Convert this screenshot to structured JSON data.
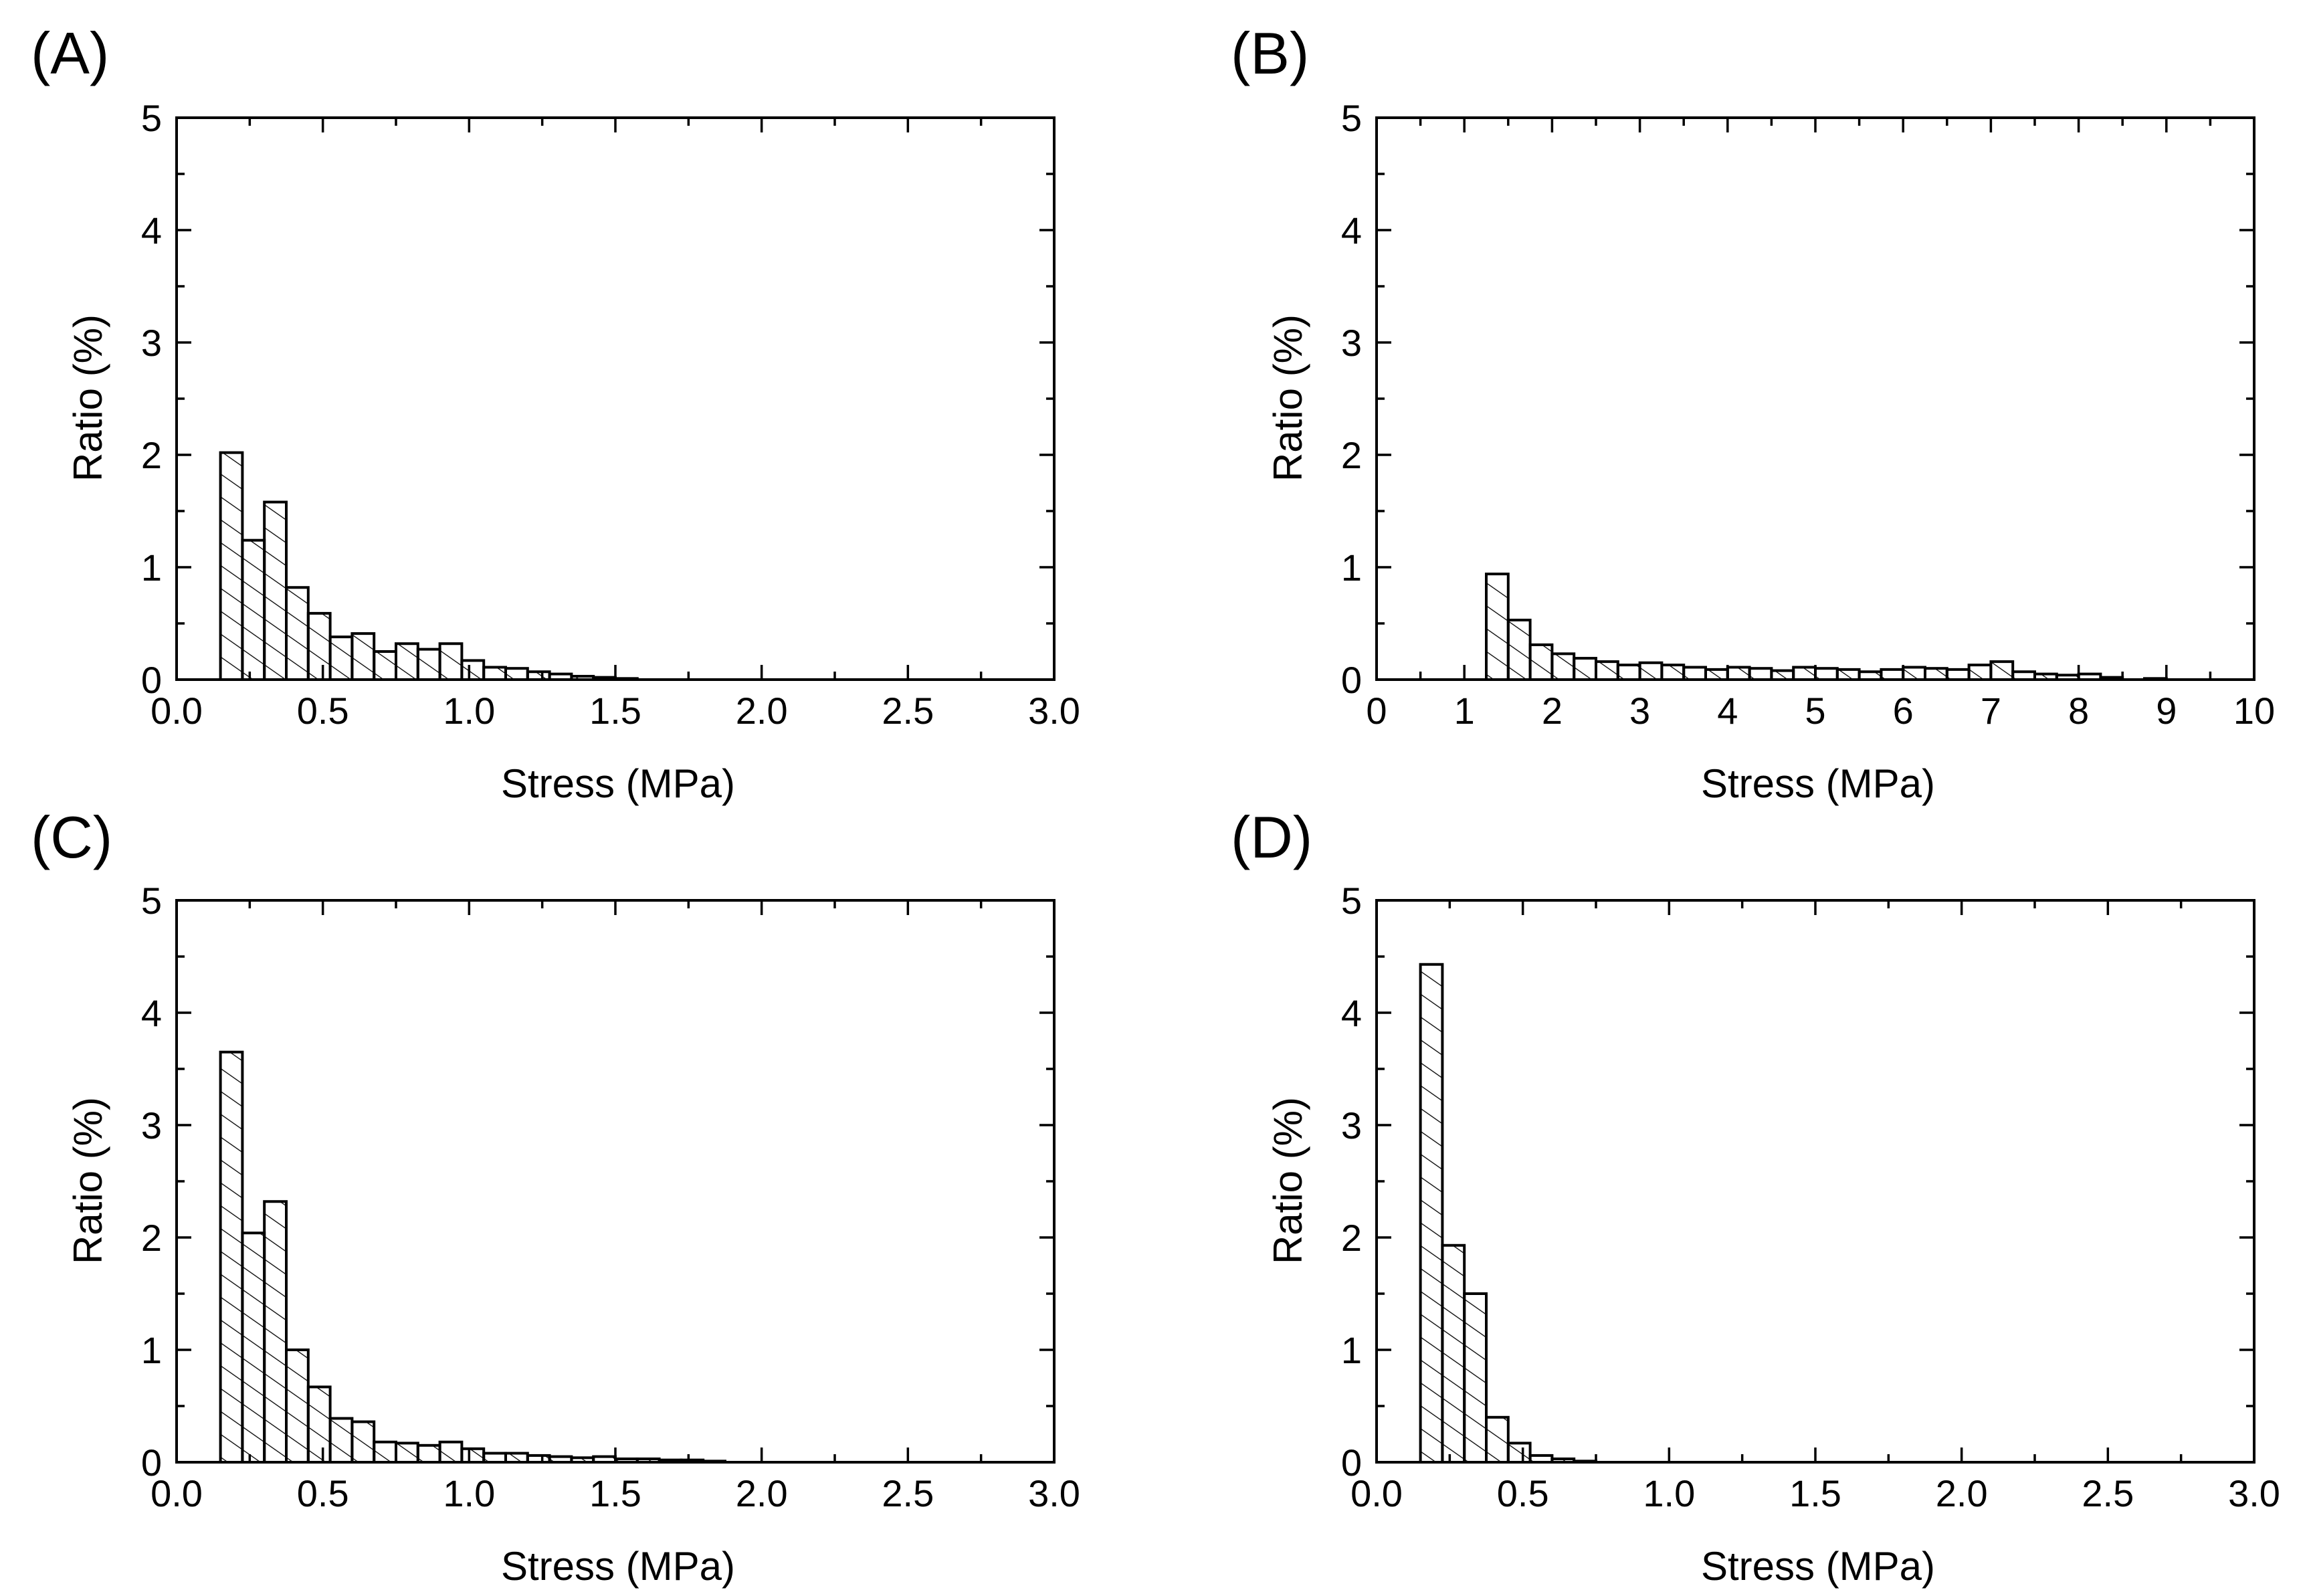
{
  "figure": {
    "panels": [
      "A",
      "B",
      "C",
      "D"
    ]
  },
  "chart_data": [
    {
      "panel_label": "(A)",
      "type": "bar",
      "title": "",
      "xlabel": "Stress (MPa)",
      "ylabel": "Ratio (%)",
      "xlim": [
        0,
        3.0
      ],
      "ylim": [
        0,
        5
      ],
      "x_ticks": [
        "0.0",
        "0.5",
        "1.0",
        "1.5",
        "2.0",
        "2.5",
        "3.0"
      ],
      "y_ticks": [
        "0",
        "1",
        "2",
        "3",
        "4",
        "5"
      ],
      "bin_width": 0.075,
      "bin_start": 0.15,
      "values": [
        2.02,
        1.24,
        1.58,
        0.82,
        0.59,
        0.38,
        0.41,
        0.25,
        0.32,
        0.27,
        0.32,
        0.17,
        0.11,
        0.1,
        0.07,
        0.05,
        0.03,
        0.02,
        0.01,
        0.0
      ]
    },
    {
      "panel_label": "(B)",
      "type": "bar",
      "title": "",
      "xlabel": "Stress (MPa)",
      "ylabel": "Ratio (%)",
      "xlim": [
        0,
        10
      ],
      "ylim": [
        0,
        5
      ],
      "x_ticks": [
        "0",
        "1",
        "2",
        "3",
        "4",
        "5",
        "6",
        "7",
        "8",
        "9",
        "10"
      ],
      "y_ticks": [
        "0",
        "1",
        "2",
        "3",
        "4",
        "5"
      ],
      "bin_width": 0.25,
      "bin_start": 1.25,
      "values": [
        0.94,
        0.53,
        0.31,
        0.23,
        0.19,
        0.16,
        0.13,
        0.15,
        0.13,
        0.11,
        0.09,
        0.11,
        0.1,
        0.08,
        0.11,
        0.1,
        0.09,
        0.07,
        0.09,
        0.11,
        0.1,
        0.09,
        0.13,
        0.16,
        0.07,
        0.05,
        0.04,
        0.05,
        0.02,
        0.0,
        0.01,
        0.0,
        0.0
      ]
    },
    {
      "panel_label": "(C)",
      "type": "bar",
      "title": "",
      "xlabel": "Stress (MPa)",
      "ylabel": "Ratio (%)",
      "xlim": [
        0,
        3.0
      ],
      "ylim": [
        0,
        5
      ],
      "x_ticks": [
        "0.0",
        "0.5",
        "1.0",
        "1.5",
        "2.0",
        "2.5",
        "3.0"
      ],
      "y_ticks": [
        "0",
        "1",
        "2",
        "3",
        "4",
        "5"
      ],
      "bin_width": 0.075,
      "bin_start": 0.15,
      "values": [
        3.65,
        2.04,
        2.32,
        1.0,
        0.67,
        0.39,
        0.36,
        0.18,
        0.17,
        0.15,
        0.18,
        0.12,
        0.08,
        0.08,
        0.06,
        0.05,
        0.04,
        0.05,
        0.03,
        0.03,
        0.02,
        0.02,
        0.01,
        0.0
      ]
    },
    {
      "panel_label": "(D)",
      "type": "bar",
      "title": "",
      "xlabel": "Stress (MPa)",
      "ylabel": "Ratio (%)",
      "xlim": [
        0,
        3.0
      ],
      "ylim": [
        0,
        5
      ],
      "x_ticks": [
        "0.0",
        "0.5",
        "1.0",
        "1.5",
        "2.0",
        "2.5",
        "3.0"
      ],
      "y_ticks": [
        "0",
        "1",
        "2",
        "3",
        "4",
        "5"
      ],
      "bin_width": 0.075,
      "bin_start": 0.15,
      "values": [
        4.43,
        1.93,
        1.5,
        0.4,
        0.17,
        0.06,
        0.03,
        0.01,
        0.0
      ]
    }
  ]
}
